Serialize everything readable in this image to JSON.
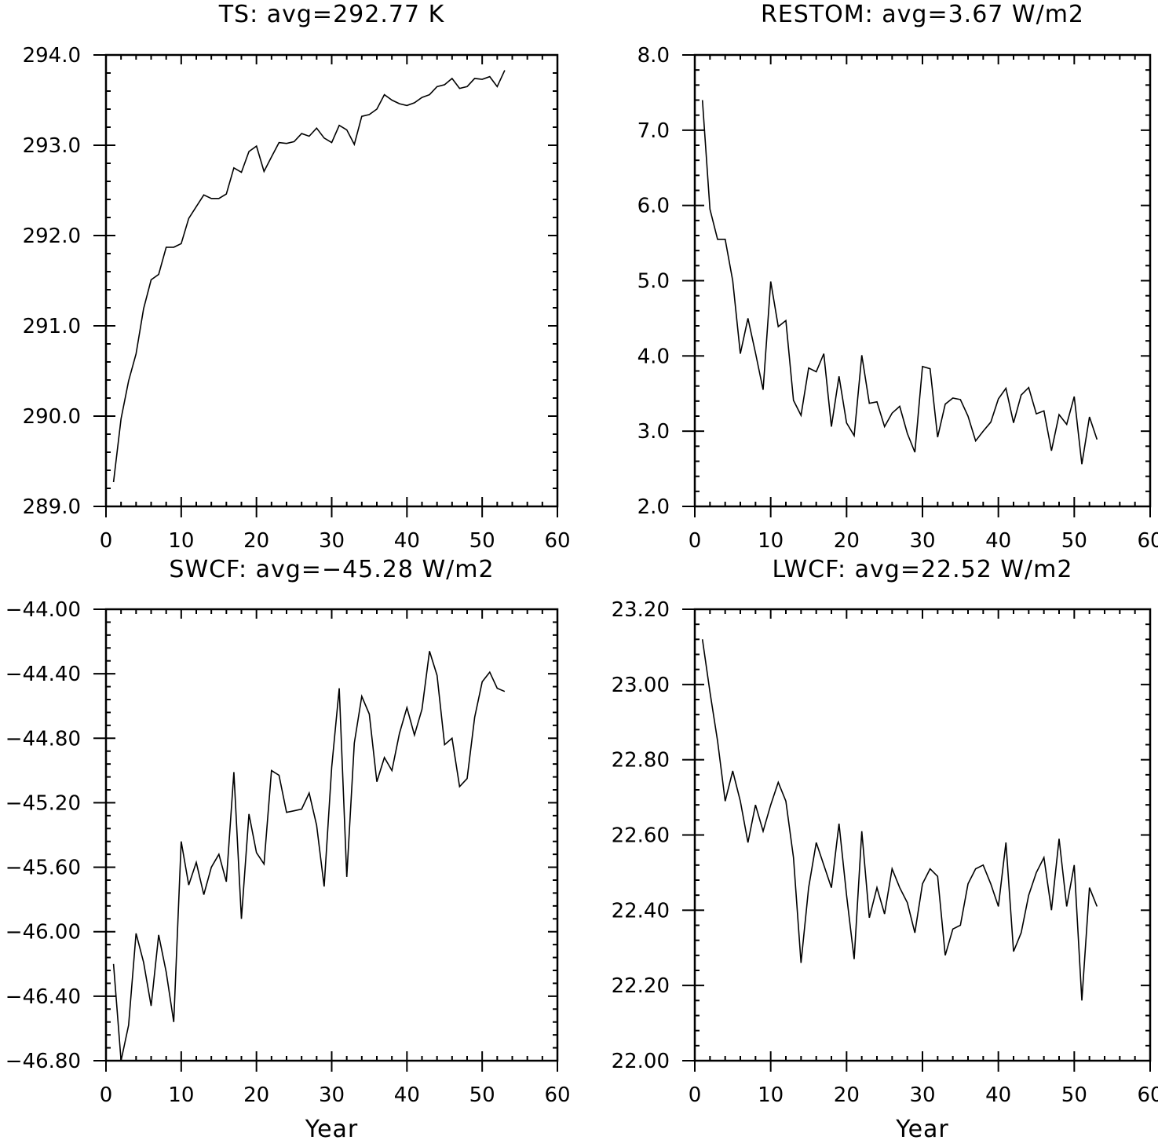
{
  "chart_data": [
    {
      "type": "line",
      "title": "TS: avg=292.77 K",
      "xlabel": "",
      "ylabel": "",
      "xlim": [
        0,
        60
      ],
      "ylim": [
        289.0,
        294.0
      ],
      "xticks": [
        "0",
        "10",
        "20",
        "30",
        "40",
        "50",
        "60"
      ],
      "yticks": [
        "289.0",
        "290.0",
        "291.0",
        "292.0",
        "293.0",
        "294.0"
      ],
      "grid": false,
      "x": [
        1,
        2,
        3,
        4,
        5,
        6,
        7,
        8,
        9,
        10,
        11,
        12,
        13,
        14,
        15,
        16,
        17,
        18,
        19,
        20,
        21,
        22,
        23,
        24,
        25,
        26,
        27,
        28,
        29,
        30,
        31,
        32,
        33,
        34,
        35,
        36,
        37,
        38,
        39,
        40,
        41,
        42,
        43,
        44,
        45,
        46,
        47,
        48,
        49,
        50,
        51,
        52,
        53
      ],
      "values": [
        289.27,
        289.97,
        290.39,
        290.69,
        291.19,
        291.51,
        291.57,
        291.87,
        291.87,
        291.91,
        292.19,
        292.32,
        292.45,
        292.41,
        292.41,
        292.46,
        292.75,
        292.7,
        292.93,
        292.99,
        292.71,
        292.87,
        293.03,
        293.02,
        293.04,
        293.13,
        293.1,
        293.19,
        293.08,
        293.03,
        293.22,
        293.17,
        293.01,
        293.32,
        293.34,
        293.4,
        293.56,
        293.5,
        293.46,
        293.44,
        293.47,
        293.53,
        293.56,
        293.65,
        293.67,
        293.74,
        293.63,
        293.65,
        293.74,
        293.73,
        293.76,
        293.65,
        293.83
      ]
    },
    {
      "type": "line",
      "title": "RESTOM: avg=3.67 W/m2",
      "xlabel": "",
      "ylabel": "",
      "xlim": [
        0,
        60
      ],
      "ylim": [
        2.0,
        8.0
      ],
      "xticks": [
        "0",
        "10",
        "20",
        "30",
        "40",
        "50",
        "60"
      ],
      "yticks": [
        "2.0",
        "3.0",
        "4.0",
        "5.0",
        "6.0",
        "7.0",
        "8.0"
      ],
      "grid": false,
      "x": [
        1,
        2,
        3,
        4,
        5,
        6,
        7,
        8,
        9,
        10,
        11,
        12,
        13,
        14,
        15,
        16,
        17,
        18,
        19,
        20,
        21,
        22,
        23,
        24,
        25,
        26,
        27,
        28,
        29,
        30,
        31,
        32,
        33,
        34,
        35,
        36,
        37,
        38,
        39,
        40,
        41,
        42,
        43,
        44,
        45,
        46,
        47,
        48,
        49,
        50,
        51,
        52,
        53
      ],
      "values": [
        7.4,
        5.95,
        5.55,
        5.55,
        5.0,
        4.03,
        4.5,
        4.04,
        3.55,
        4.99,
        4.39,
        4.47,
        3.41,
        3.21,
        3.84,
        3.79,
        4.03,
        3.06,
        3.73,
        3.11,
        2.94,
        4.01,
        3.37,
        3.39,
        3.06,
        3.24,
        3.33,
        2.97,
        2.72,
        3.86,
        3.83,
        2.92,
        3.36,
        3.44,
        3.42,
        3.2,
        2.87,
        3.0,
        3.12,
        3.43,
        3.57,
        3.11,
        3.48,
        3.58,
        3.23,
        3.27,
        2.74,
        3.22,
        3.09,
        3.46,
        2.56,
        3.19,
        2.89
      ]
    },
    {
      "type": "line",
      "title": "SWCF: avg=−45.28 W/m2",
      "xlabel": "Year",
      "ylabel": "",
      "xlim": [
        0,
        60
      ],
      "ylim": [
        -46.8,
        -44.0
      ],
      "xticks": [
        "0",
        "10",
        "20",
        "30",
        "40",
        "50",
        "60"
      ],
      "yticks": [
        "−46.80",
        "−46.40",
        "−46.00",
        "−45.60",
        "−45.20",
        "−44.80",
        "−44.40",
        "−44.00"
      ],
      "grid": false,
      "x": [
        1,
        2,
        3,
        4,
        5,
        6,
        7,
        8,
        9,
        10,
        11,
        12,
        13,
        14,
        15,
        16,
        17,
        18,
        19,
        20,
        21,
        22,
        23,
        24,
        25,
        26,
        27,
        28,
        29,
        30,
        31,
        32,
        33,
        34,
        35,
        36,
        37,
        38,
        39,
        40,
        41,
        42,
        43,
        44,
        45,
        46,
        47,
        48,
        49,
        50,
        51,
        52,
        53
      ],
      "values": [
        -46.2,
        -46.8,
        -46.58,
        -46.01,
        -46.19,
        -46.46,
        -46.02,
        -46.25,
        -46.56,
        -45.44,
        -45.71,
        -45.57,
        -45.77,
        -45.6,
        -45.52,
        -45.69,
        -45.01,
        -45.92,
        -45.27,
        -45.51,
        -45.58,
        -45.0,
        -45.03,
        -45.26,
        -45.25,
        -45.24,
        -45.14,
        -45.34,
        -45.72,
        -44.98,
        -44.49,
        -45.66,
        -44.83,
        -44.54,
        -44.65,
        -45.07,
        -44.92,
        -45.0,
        -44.77,
        -44.61,
        -44.78,
        -44.62,
        -44.26,
        -44.41,
        -44.84,
        -44.8,
        -45.1,
        -45.05,
        -44.67,
        -44.45,
        -44.39,
        -44.49,
        -44.51
      ]
    },
    {
      "type": "line",
      "title": "LWCF: avg=22.52 W/m2",
      "xlabel": "Year",
      "ylabel": "",
      "xlim": [
        0,
        60
      ],
      "ylim": [
        22.0,
        23.2
      ],
      "xticks": [
        "0",
        "10",
        "20",
        "30",
        "40",
        "50",
        "60"
      ],
      "yticks": [
        "22.00",
        "22.20",
        "22.40",
        "22.60",
        "22.80",
        "23.00",
        "23.20"
      ],
      "grid": false,
      "x": [
        1,
        2,
        3,
        4,
        5,
        6,
        7,
        8,
        9,
        10,
        11,
        12,
        13,
        14,
        15,
        16,
        17,
        18,
        19,
        20,
        21,
        22,
        23,
        24,
        25,
        26,
        27,
        28,
        29,
        30,
        31,
        32,
        33,
        34,
        35,
        36,
        37,
        38,
        39,
        40,
        41,
        42,
        43,
        44,
        45,
        46,
        47,
        48,
        49,
        50,
        51,
        52,
        53
      ],
      "values": [
        23.12,
        22.98,
        22.85,
        22.69,
        22.77,
        22.69,
        22.58,
        22.68,
        22.61,
        22.68,
        22.74,
        22.69,
        22.54,
        22.26,
        22.46,
        22.58,
        22.52,
        22.46,
        22.63,
        22.44,
        22.27,
        22.61,
        22.38,
        22.46,
        22.39,
        22.51,
        22.46,
        22.42,
        22.34,
        22.47,
        22.51,
        22.49,
        22.28,
        22.35,
        22.36,
        22.47,
        22.51,
        22.52,
        22.47,
        22.41,
        22.58,
        22.29,
        22.34,
        22.44,
        22.5,
        22.54,
        22.4,
        22.59,
        22.41,
        22.52,
        22.16,
        22.46,
        22.41
      ]
    }
  ]
}
